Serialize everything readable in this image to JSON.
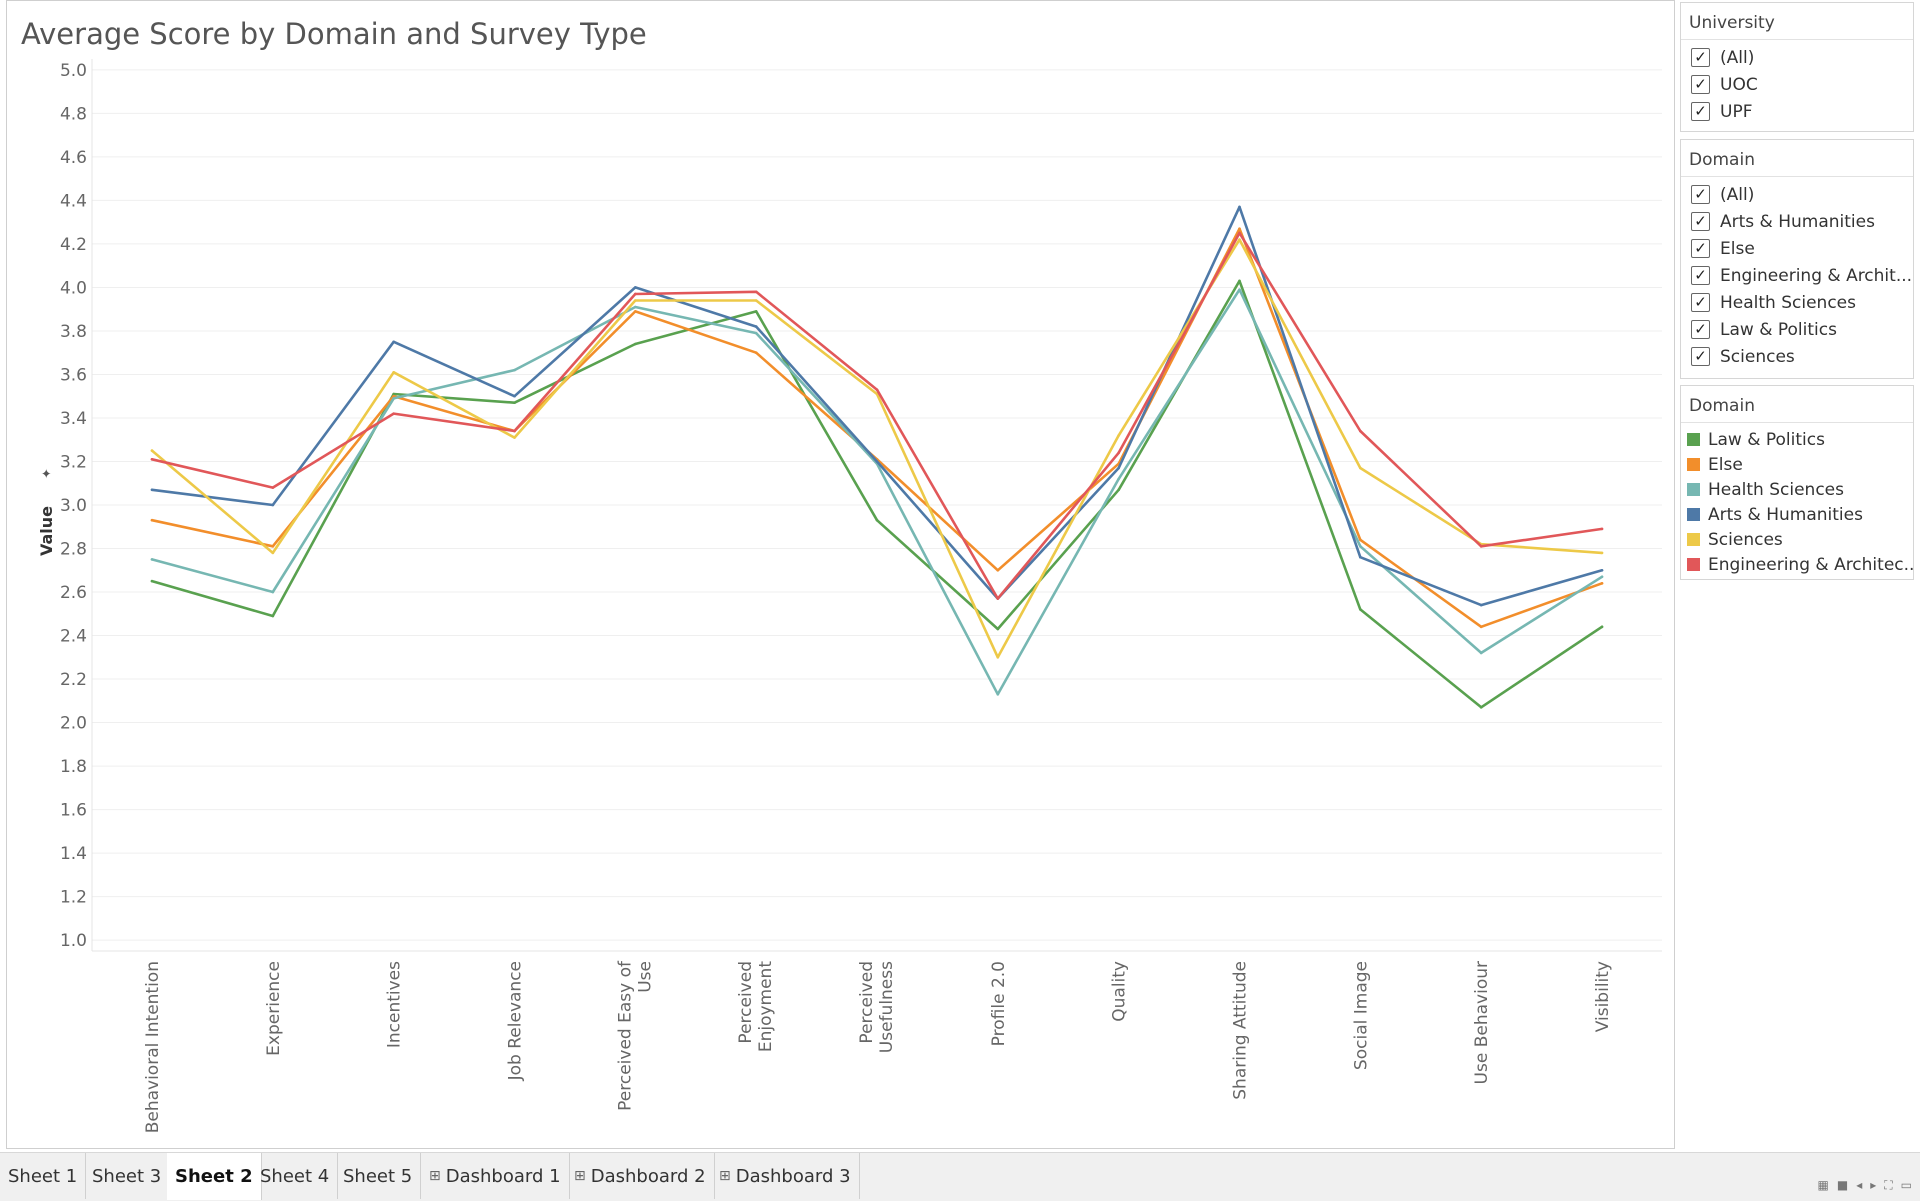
{
  "chart_data": {
    "type": "line",
    "title": "Average Score by Domain and Survey Type",
    "ylabel": "Value",
    "xlabel": "",
    "ylim": [
      0.95,
      5.05
    ],
    "yticks": [
      1.0,
      1.2,
      1.4,
      1.6,
      1.8,
      2.0,
      2.2,
      2.4,
      2.6,
      2.8,
      3.0,
      3.2,
      3.4,
      3.6,
      3.8,
      4.0,
      4.2,
      4.4,
      4.6,
      4.8,
      5.0
    ],
    "categories": [
      "Behavioral Intention",
      "Experience",
      "Incentives",
      "Job Relevance",
      "Perceived Easy of Use",
      "Perceived Enjoyment",
      "Perceived Usefulness",
      "Profile 2.0",
      "Quality",
      "Sharing Attitude",
      "Social Image",
      "Use Behaviour",
      "Visibility"
    ],
    "grid": true,
    "legend_position": "right",
    "series": [
      {
        "name": "Law & Politics",
        "color": "#59a14f",
        "values": [
          2.65,
          2.49,
          3.51,
          3.47,
          3.74,
          3.89,
          2.93,
          2.43,
          3.07,
          4.03,
          2.52,
          2.07,
          2.44
        ]
      },
      {
        "name": "Else",
        "color": "#f28e2b",
        "values": [
          2.93,
          2.81,
          3.5,
          3.34,
          3.89,
          3.7,
          3.21,
          2.7,
          3.19,
          4.27,
          2.84,
          2.44,
          2.64
        ]
      },
      {
        "name": "Health Sciences",
        "color": "#76b7b2",
        "values": [
          2.75,
          2.6,
          3.49,
          3.62,
          3.91,
          3.79,
          3.19,
          2.13,
          3.12,
          3.99,
          2.81,
          2.32,
          2.67
        ]
      },
      {
        "name": "Arts & Humanities",
        "color": "#4e79a7",
        "values": [
          3.07,
          3.0,
          3.75,
          3.5,
          4.0,
          3.82,
          3.2,
          2.57,
          3.17,
          4.37,
          2.76,
          2.54,
          2.7
        ]
      },
      {
        "name": "Sciences",
        "color": "#edc948",
        "values": [
          3.25,
          2.78,
          3.61,
          3.31,
          3.94,
          3.94,
          3.51,
          2.3,
          3.32,
          4.22,
          3.17,
          2.82,
          2.78
        ]
      },
      {
        "name": "Engineering & Architec..",
        "color": "#e15759",
        "values": [
          3.21,
          3.08,
          3.42,
          3.34,
          3.97,
          3.98,
          3.53,
          2.57,
          3.24,
          4.25,
          3.34,
          2.81,
          2.89
        ]
      }
    ]
  },
  "x_label_lines": [
    [
      "Behavioral Intention"
    ],
    [
      "Experience"
    ],
    [
      "Incentives"
    ],
    [
      "Job Relevance"
    ],
    [
      "Perceived Easy of",
      "Use"
    ],
    [
      "Perceived",
      "Enjoyment"
    ],
    [
      "Perceived",
      "Usefulness"
    ],
    [
      "Profile 2.0"
    ],
    [
      "Quality"
    ],
    [
      "Sharing Attitude"
    ],
    [
      "Social Image"
    ],
    [
      "Use Behaviour"
    ],
    [
      "Visibility"
    ]
  ],
  "filters": {
    "university": {
      "title": "University",
      "items": [
        "(All)",
        "UOC",
        "UPF"
      ]
    },
    "domain": {
      "title": "Domain",
      "items": [
        "(All)",
        "Arts & Humanities",
        "Else",
        "Engineering & Archit...",
        "Health Sciences",
        "Law & Politics",
        "Sciences"
      ]
    }
  },
  "legend": {
    "title": "Domain"
  },
  "tabs": [
    {
      "label": "Sheet 1",
      "active": false,
      "dashboard": false
    },
    {
      "label": "Sheet 3",
      "active": false,
      "dashboard": false
    },
    {
      "label": "Sheet 2",
      "active": true,
      "dashboard": false
    },
    {
      "label": "Sheet 4",
      "active": false,
      "dashboard": false
    },
    {
      "label": "Sheet 5",
      "active": false,
      "dashboard": false
    },
    {
      "label": "Dashboard 1",
      "active": false,
      "dashboard": true
    },
    {
      "label": "Dashboard 2",
      "active": false,
      "dashboard": true
    },
    {
      "label": "Dashboard 3",
      "active": false,
      "dashboard": true
    }
  ]
}
